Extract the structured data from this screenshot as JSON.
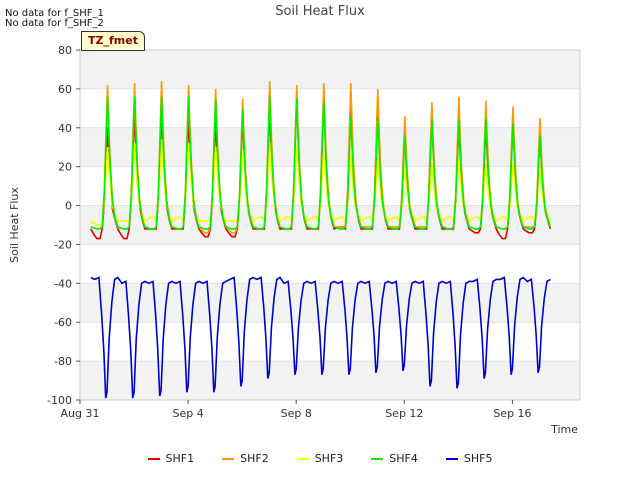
{
  "notes": [
    "No data for f_SHF_1",
    "No data for f_SHF_2"
  ],
  "site_label": "TZ_fmet",
  "chart_data": {
    "type": "line",
    "title": "Soil Heat Flux",
    "xlabel": "Time",
    "ylabel": "Soil Heat Flux",
    "xlim": [
      0,
      18.5
    ],
    "ylim": [
      -100,
      80
    ],
    "yticks": [
      -100,
      -80,
      -60,
      -40,
      -20,
      0,
      20,
      40,
      60,
      80
    ],
    "xticks": [
      {
        "day": 0,
        "label": "Aug 31"
      },
      {
        "day": 4,
        "label": "Sep 4"
      },
      {
        "day": 8,
        "label": "Sep 8"
      },
      {
        "day": 12,
        "label": "Sep 12"
      },
      {
        "day": 16,
        "label": "Sep 16"
      }
    ],
    "x_start": 0.4,
    "days": 17,
    "series": [
      {
        "name": "SHF1",
        "color": "#e00000",
        "base": -12,
        "peaks": [
          40,
          48,
          48,
          46,
          44,
          46,
          50,
          56,
          54,
          55,
          56,
          37,
          45,
          42,
          42,
          43,
          37
        ],
        "troughs": [
          -17,
          -17,
          -12,
          -12,
          -16,
          -16,
          -12,
          -12,
          -12,
          -11,
          -12,
          -12,
          -12,
          -12,
          -14,
          -17,
          -14
        ]
      },
      {
        "name": "SHF2",
        "color": "#ff9900",
        "base": -11,
        "peaks": [
          62,
          63,
          64,
          62,
          60,
          55,
          64,
          62,
          63,
          63,
          60,
          46,
          53,
          56,
          54,
          51,
          45
        ],
        "troughs": [
          -12,
          -12,
          -12,
          -12,
          -14,
          -14,
          -12,
          -12,
          -12,
          -11,
          -11,
          -11,
          -11,
          -12,
          -12,
          -12,
          -11
        ]
      },
      {
        "name": "SHF3",
        "color": "#ffff00",
        "base": -8,
        "peaks": [
          30,
          32,
          34,
          32,
          30,
          28,
          32,
          30,
          28,
          26,
          24,
          20,
          22,
          24,
          22,
          22,
          20
        ],
        "troughs": [
          -10,
          -8,
          -6,
          -6,
          -8,
          -8,
          -6,
          -6,
          -6,
          -6,
          -6,
          -6,
          -6,
          -6,
          -6,
          -6,
          -6
        ]
      },
      {
        "name": "SHF4",
        "color": "#00ee00",
        "base": -11,
        "peaks": [
          56,
          56,
          56,
          56,
          55,
          49,
          56,
          55,
          54,
          46,
          45,
          36,
          44,
          44,
          45,
          42,
          36
        ],
        "troughs": [
          -12,
          -12,
          -12,
          -12,
          -12,
          -12,
          -12,
          -12,
          -12,
          -12,
          -12,
          -12,
          -12,
          -12,
          -12,
          -12,
          -12
        ]
      },
      {
        "name": "SHF5",
        "color": "#0000cc",
        "base": -40,
        "peaks": [
          -37,
          -39,
          -39,
          -39,
          -39,
          -37,
          -37,
          -39,
          -39,
          -39,
          -39,
          -39,
          -39,
          -39,
          -38,
          -37,
          -38
        ],
        "troughs": [
          -99,
          -99,
          -98,
          -96,
          -96,
          -93,
          -89,
          -87,
          -87,
          -87,
          -86,
          -85,
          -93,
          -94,
          -89,
          -87,
          -86
        ]
      }
    ]
  }
}
